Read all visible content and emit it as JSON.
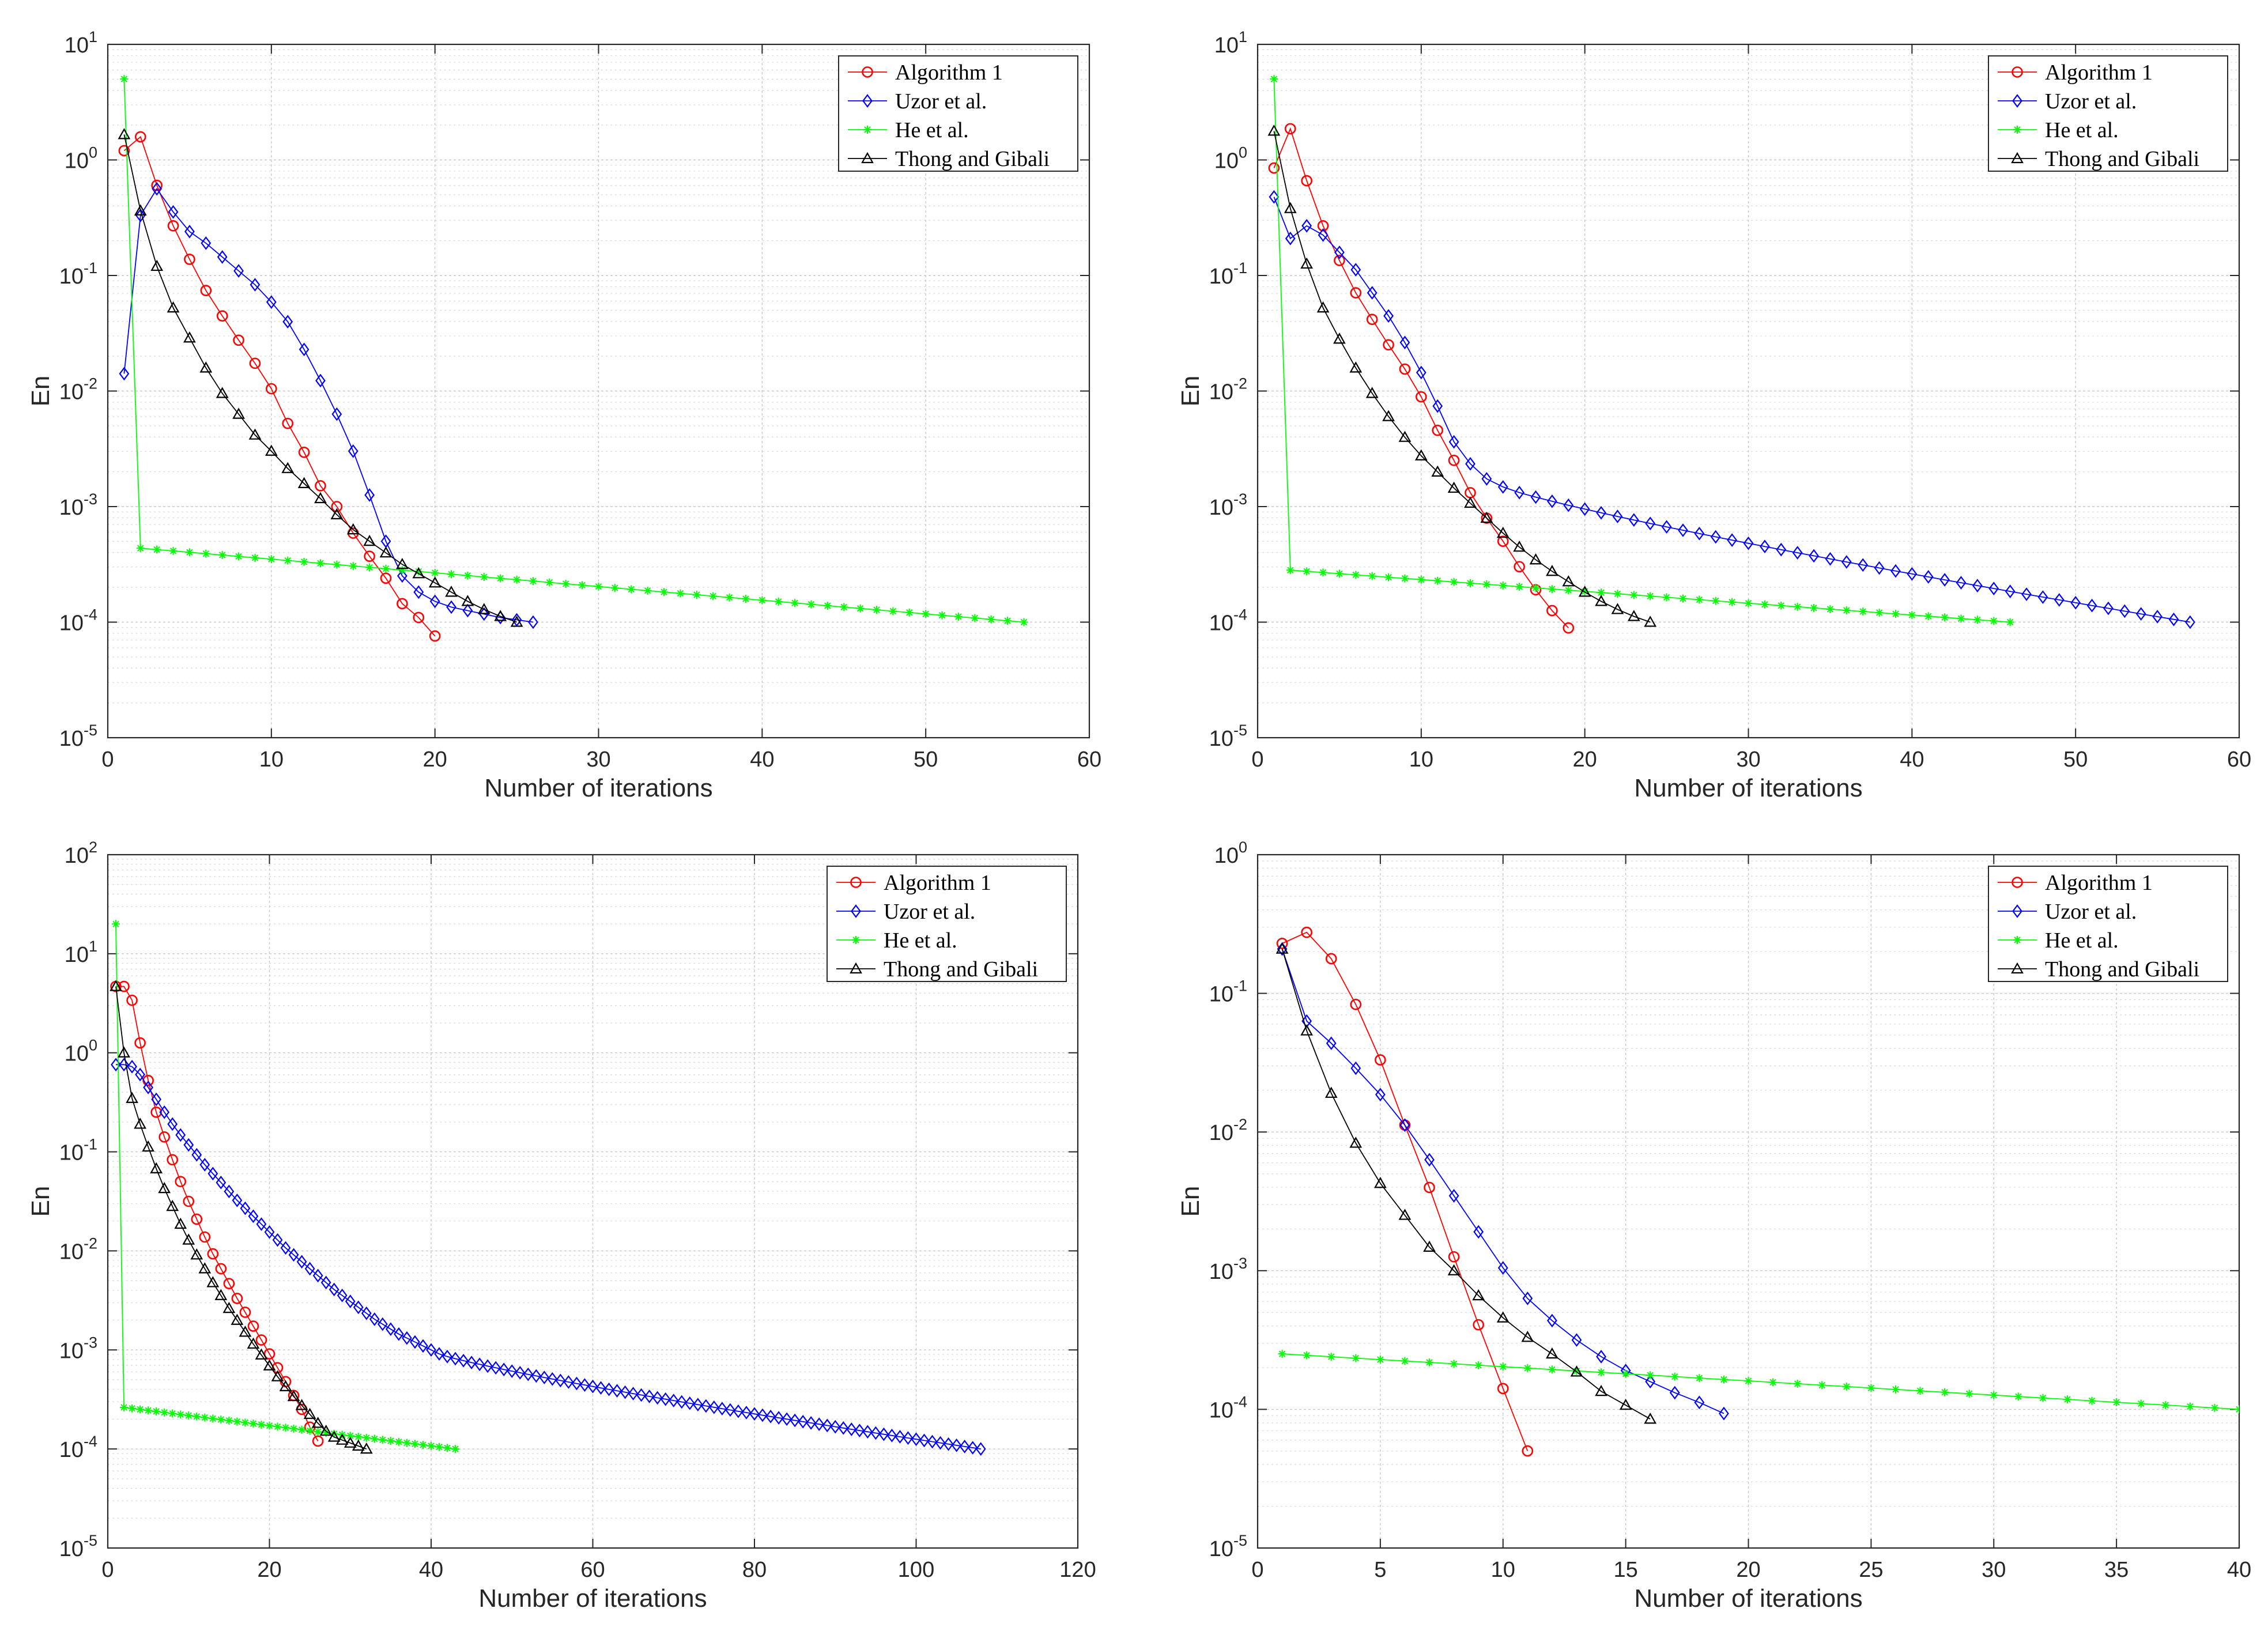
{
  "chart_data": [
    {
      "type": "line",
      "yscale": "log",
      "xlabel": "Number of iterations",
      "ylabel": "En",
      "xlim": [
        0,
        60
      ],
      "ylim_exp": [
        -5,
        1
      ],
      "xticks": [
        "0",
        "10",
        "20",
        "30",
        "40",
        "50",
        "60"
      ],
      "legend_position": "top-right",
      "series": [
        {
          "name": "Algorithm 1",
          "color": "#ff0000",
          "marker": "circle",
          "x_start": 1,
          "log10_values": [
            0.08,
            0.2,
            -0.22,
            -0.57,
            -0.86,
            -1.13,
            -1.35,
            -1.56,
            -1.76,
            -1.98,
            -2.28,
            -2.53,
            -2.82,
            -3.0,
            -3.23,
            -3.43,
            -3.62,
            -3.84,
            -3.96,
            -4.12
          ]
        },
        {
          "name": "Uzor et al.",
          "color": "#0000ff",
          "marker": "diamond",
          "x_start": 1,
          "log10_values": [
            -1.85,
            -0.48,
            -0.25,
            -0.45,
            -0.62,
            -0.72,
            -0.84,
            -0.96,
            -1.08,
            -1.23,
            -1.4,
            -1.64,
            -1.91,
            -2.2,
            -2.52,
            -2.9,
            -3.3,
            -3.6,
            -3.74,
            -3.82,
            -3.87,
            -3.9,
            -3.93,
            -3.96,
            -3.98,
            -4.0
          ]
        },
        {
          "name": "He et al.",
          "color": "#00ff00",
          "marker": "asterisk",
          "x_start": 1,
          "start_log10": 0.7,
          "end_log10": -4.0,
          "second_log10": -3.36,
          "count": 56
        },
        {
          "name": "Thong and Gibali",
          "color": "#000000",
          "marker": "triangle",
          "x_start": 1,
          "log10_values": [
            0.22,
            -0.44,
            -0.92,
            -1.28,
            -1.54,
            -1.8,
            -2.02,
            -2.2,
            -2.38,
            -2.52,
            -2.67,
            -2.8,
            -2.93,
            -3.07,
            -3.2,
            -3.3,
            -3.4,
            -3.5,
            -3.58,
            -3.66,
            -3.74,
            -3.82,
            -3.89,
            -3.95,
            -4.0
          ]
        }
      ]
    },
    {
      "type": "line",
      "yscale": "log",
      "xlabel": "Number of iterations",
      "ylabel": "En",
      "xlim": [
        0,
        60
      ],
      "ylim_exp": [
        -5,
        1
      ],
      "xticks": [
        "0",
        "10",
        "20",
        "30",
        "40",
        "50",
        "60"
      ],
      "legend_position": "top-right",
      "series": [
        {
          "name": "Algorithm 1",
          "color": "#ff0000",
          "marker": "circle",
          "x_start": 1,
          "log10_values": [
            -0.07,
            0.27,
            -0.18,
            -0.57,
            -0.87,
            -1.15,
            -1.38,
            -1.6,
            -1.81,
            -2.05,
            -2.34,
            -2.6,
            -2.88,
            -3.1,
            -3.3,
            -3.52,
            -3.72,
            -3.9,
            -4.05
          ]
        },
        {
          "name": "Uzor et al.",
          "color": "#0000ff",
          "marker": "diamond",
          "head_log10": [
            -0.32,
            -0.68,
            -0.57,
            -0.65,
            -0.8,
            -0.95,
            -1.15,
            -1.35,
            -1.58,
            -1.84,
            -2.13,
            -2.44,
            -2.63,
            -2.76
          ],
          "tail_start": 15,
          "tail_end": 57,
          "tail_start_log10": -2.83,
          "tail_end_log10": -4.0
        },
        {
          "name": "He et al.",
          "color": "#00ff00",
          "marker": "asterisk",
          "x_start": 1,
          "start_log10": 0.7,
          "end_log10": -4.0,
          "second_log10": -3.55,
          "count": 46
        },
        {
          "name": "Thong and Gibali",
          "color": "#000000",
          "marker": "triangle",
          "x_start": 1,
          "log10_values": [
            0.25,
            -0.42,
            -0.9,
            -1.28,
            -1.55,
            -1.8,
            -2.02,
            -2.22,
            -2.4,
            -2.56,
            -2.7,
            -2.84,
            -2.97,
            -3.1,
            -3.23,
            -3.35,
            -3.46,
            -3.56,
            -3.65,
            -3.74,
            -3.82,
            -3.89,
            -3.95,
            -4.0
          ]
        }
      ]
    },
    {
      "type": "line",
      "yscale": "log",
      "xlabel": "Number of iterations",
      "ylabel": "En",
      "xlim": [
        0,
        120
      ],
      "ylim_exp": [
        -5,
        2
      ],
      "xticks": [
        "0",
        "20",
        "40",
        "60",
        "80",
        "100",
        "120"
      ],
      "legend_position": "top-right",
      "series": [
        {
          "name": "Algorithm 1",
          "color": "#ff0000",
          "marker": "circle",
          "x_start": 1,
          "log10_values": [
            0.67,
            0.67,
            0.53,
            0.1,
            -0.28,
            -0.6,
            -0.85,
            -1.08,
            -1.3,
            -1.5,
            -1.68,
            -1.86,
            -2.03,
            -2.18,
            -2.33,
            -2.48,
            -2.62,
            -2.76,
            -2.9,
            -3.04,
            -3.18,
            -3.32,
            -3.46,
            -3.6,
            -3.78,
            -3.92
          ]
        },
        {
          "name": "Uzor et al.",
          "color": "#0000ff",
          "marker": "diamond",
          "head_log10": [
            -0.12,
            -0.12,
            -0.14,
            -0.22,
            -0.35,
            -0.47,
            -0.6,
            -0.72,
            -0.83,
            -0.93,
            -1.03,
            -1.13,
            -1.22,
            -1.31,
            -1.4,
            -1.49,
            -1.57,
            -1.65,
            -1.73,
            -1.81,
            -1.89,
            -1.97,
            -2.04,
            -2.11,
            -2.18,
            -2.25,
            -2.32,
            -2.39,
            -2.45,
            -2.51,
            -2.57,
            -2.63,
            -2.69,
            -2.74,
            -2.79,
            -2.84,
            -2.88,
            -2.92,
            -2.96,
            -3.0
          ],
          "tail_start": 41,
          "tail_end": 108,
          "tail_start_log10": -3.04,
          "tail_end_log10": -4.0
        },
        {
          "name": "He et al.",
          "color": "#00ff00",
          "marker": "asterisk",
          "x_start": 1,
          "start_log10": 1.3,
          "end_log10": -4.0,
          "second_log10": -3.58,
          "count": 43
        },
        {
          "name": "Thong and Gibali",
          "color": "#000000",
          "marker": "triangle",
          "x_start": 1,
          "log10_values": [
            0.67,
            0.0,
            -0.46,
            -0.72,
            -0.95,
            -1.17,
            -1.37,
            -1.55,
            -1.73,
            -1.89,
            -2.04,
            -2.18,
            -2.32,
            -2.45,
            -2.58,
            -2.7,
            -2.82,
            -2.94,
            -3.05,
            -3.16,
            -3.27,
            -3.37,
            -3.47,
            -3.56,
            -3.65,
            -3.74,
            -3.82,
            -3.88,
            -3.91,
            -3.94,
            -3.97,
            -4.0
          ]
        }
      ]
    },
    {
      "type": "line",
      "yscale": "log",
      "xlabel": "Number of iterations",
      "ylabel": "En",
      "xlim": [
        0,
        40
      ],
      "ylim_exp": [
        -5,
        0
      ],
      "xticks": [
        "0",
        "5",
        "10",
        "15",
        "20",
        "25",
        "30",
        "35",
        "40"
      ],
      "legend_position": "top-right",
      "series": [
        {
          "name": "Algorithm 1",
          "color": "#ff0000",
          "marker": "circle",
          "x_start": 1,
          "log10_values": [
            -0.64,
            -0.56,
            -0.75,
            -1.08,
            -1.48,
            -1.95,
            -2.4,
            -2.9,
            -3.39,
            -3.85,
            -4.3
          ]
        },
        {
          "name": "Uzor et al.",
          "color": "#0000ff",
          "marker": "diamond",
          "x_start": 1,
          "log10_values": [
            -0.68,
            -1.2,
            -1.36,
            -1.54,
            -1.73,
            -1.95,
            -2.2,
            -2.46,
            -2.72,
            -2.98,
            -3.2,
            -3.36,
            -3.5,
            -3.62,
            -3.72,
            -3.8,
            -3.88,
            -3.95,
            -4.03
          ]
        },
        {
          "name": "He et al.",
          "color": "#00ff00",
          "marker": "asterisk",
          "x_start": 1,
          "start_log10": -3.6,
          "end_log10": -4.0,
          "count": 40
        },
        {
          "name": "Thong and Gibali",
          "color": "#000000",
          "marker": "triangle",
          "x_start": 1,
          "log10_values": [
            -0.68,
            -1.27,
            -1.72,
            -2.08,
            -2.37,
            -2.6,
            -2.83,
            -3.0,
            -3.18,
            -3.34,
            -3.48,
            -3.6,
            -3.73,
            -3.87,
            -3.97,
            -4.07
          ]
        }
      ]
    }
  ]
}
